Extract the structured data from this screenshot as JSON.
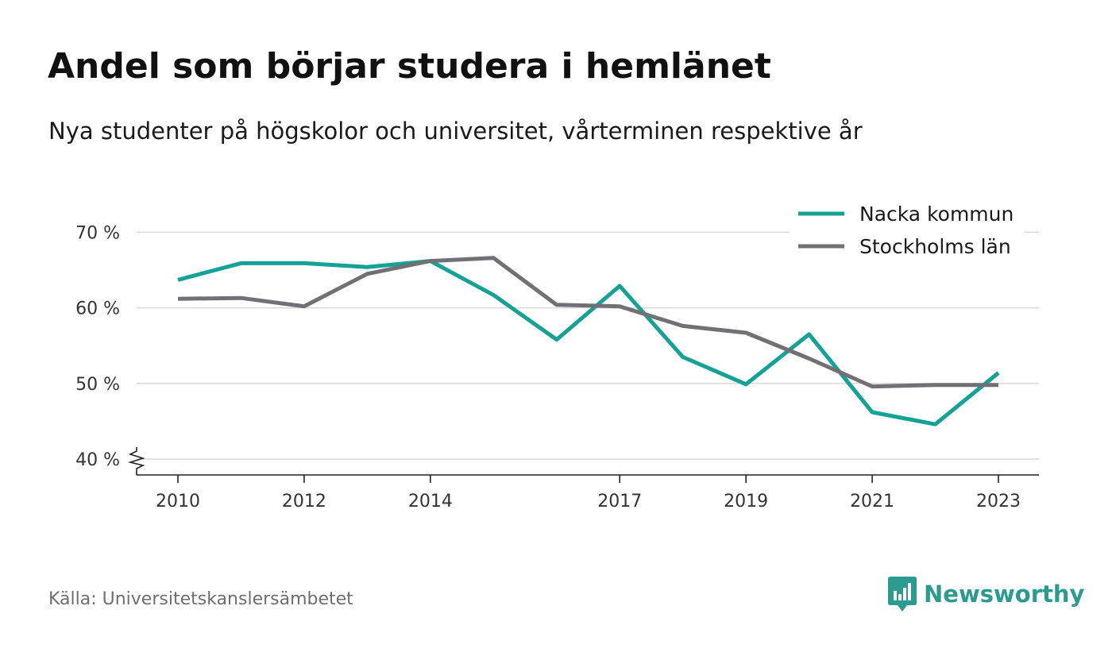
{
  "header": {
    "title": "Andel som börjar studera i hemlänet",
    "subtitle": "Nya studenter på högskolor och universitet, vårterminen respektive år"
  },
  "footer": {
    "source": "Källa: Universitetskanslersämbetet",
    "brand": "Newsworthy",
    "brand_color": "#2b9a90"
  },
  "chart_data": {
    "type": "line",
    "title": "Andel som börjar studera i hemlänet",
    "subtitle": "Nya studenter på högskolor och universitet, vårterminen respektive år",
    "x": [
      2010,
      2011,
      2012,
      2013,
      2014,
      2015,
      2016,
      2017,
      2018,
      2019,
      2020,
      2021,
      2022,
      2023
    ],
    "x_ticks": [
      2010,
      2012,
      2014,
      2017,
      2019,
      2021,
      2023
    ],
    "y_ticks": [
      40,
      50,
      60,
      70
    ],
    "y_tick_labels": [
      "40 %",
      "50 %",
      "60 %",
      "70 %"
    ],
    "ylim": [
      38,
      72
    ],
    "y_axis_broken": true,
    "grid": true,
    "legend_position": "top-right",
    "series": [
      {
        "name": "Nacka kommun",
        "color": "#14a196",
        "values": [
          63.7,
          65.9,
          65.9,
          65.4,
          66.2,
          61.7,
          55.8,
          62.9,
          53.5,
          49.9,
          56.5,
          46.2,
          44.6,
          51.4
        ]
      },
      {
        "name": "Stockholms län",
        "color": "#717075",
        "values": [
          61.2,
          61.3,
          60.2,
          64.5,
          66.2,
          66.6,
          60.4,
          60.2,
          57.6,
          56.7,
          53.3,
          49.6,
          49.8,
          49.8
        ]
      }
    ]
  }
}
